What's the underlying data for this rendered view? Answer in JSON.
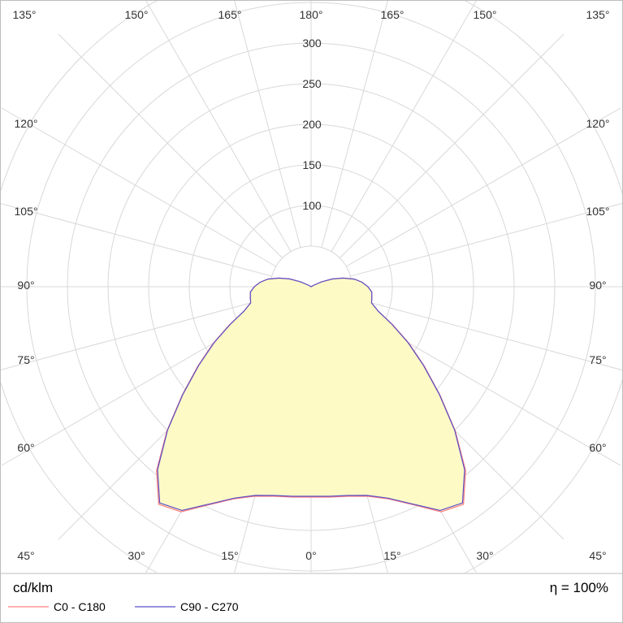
{
  "chart_data": {
    "type": "polar",
    "unit_label": "cd/klm",
    "efficiency_label": "η = 100%",
    "radial_ticks": [
      100,
      150,
      200,
      250,
      300
    ],
    "radial_max": 350,
    "angle_labels": {
      "top": [
        "135°",
        "150°",
        "165°",
        "180°",
        "165°",
        "150°",
        "135°"
      ],
      "left": [
        "120°",
        "105°",
        "90°",
        "75°",
        "60°",
        "45°"
      ],
      "right": [
        "120°",
        "105°",
        "90°",
        "75°",
        "60°",
        "45°"
      ],
      "bottom": [
        "30°",
        "15°",
        "0°",
        "15°",
        "30°"
      ]
    },
    "series": [
      {
        "name": "C0 - C180",
        "color": "#ff7f7f",
        "points": [
          [
            0,
            259
          ],
          [
            5,
            260
          ],
          [
            10,
            262
          ],
          [
            15,
            267
          ],
          [
            20,
            278
          ],
          [
            25,
            296
          ],
          [
            30,
            320
          ],
          [
            35,
            327
          ],
          [
            40,
            296
          ],
          [
            45,
            251
          ],
          [
            50,
            207
          ],
          [
            55,
            170
          ],
          [
            60,
            139
          ],
          [
            65,
            111
          ],
          [
            70,
            88
          ],
          [
            75,
            77
          ],
          [
            80,
            76
          ],
          [
            85,
            75
          ],
          [
            90,
            70
          ],
          [
            95,
            63
          ],
          [
            100,
            54
          ],
          [
            105,
            41
          ],
          [
            110,
            28
          ],
          [
            115,
            14
          ],
          [
            120,
            4
          ],
          [
            125,
            0
          ]
        ]
      },
      {
        "name": "C90 - C270",
        "color": "#5a4fc8",
        "points": [
          [
            0,
            258
          ],
          [
            5,
            259
          ],
          [
            10,
            261
          ],
          [
            15,
            266
          ],
          [
            20,
            277
          ],
          [
            25,
            295
          ],
          [
            30,
            318
          ],
          [
            35,
            325
          ],
          [
            40,
            294
          ],
          [
            45,
            250
          ],
          [
            50,
            206
          ],
          [
            55,
            169
          ],
          [
            60,
            138
          ],
          [
            65,
            110
          ],
          [
            70,
            88
          ],
          [
            75,
            77
          ],
          [
            80,
            76
          ],
          [
            85,
            75
          ],
          [
            90,
            70
          ],
          [
            95,
            63
          ],
          [
            100,
            54
          ],
          [
            105,
            41
          ],
          [
            110,
            28
          ],
          [
            115,
            14
          ],
          [
            120,
            4
          ],
          [
            125,
            0
          ]
        ]
      }
    ],
    "fill_color": "#fdfac6",
    "grid": true
  },
  "legend": [
    {
      "label": "C0 - C180",
      "color": "#ff7f7f"
    },
    {
      "label": "C90 - C270",
      "color": "#5a4fc8"
    }
  ]
}
